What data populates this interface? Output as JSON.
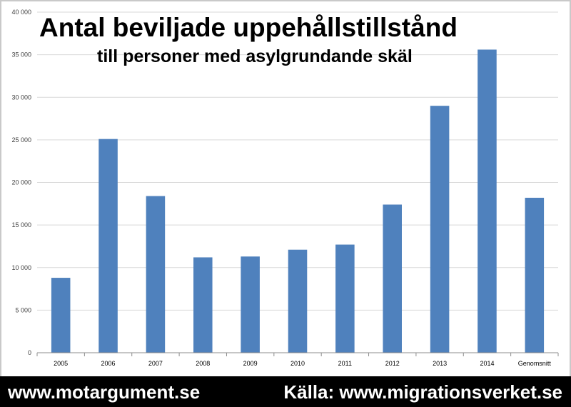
{
  "chart_data": {
    "type": "bar",
    "title": "Antal beviljade uppehållstillstånd",
    "subtitle": "till personer med asylgrundande skäl",
    "categories": [
      "2005",
      "2006",
      "2007",
      "2008",
      "2009",
      "2010",
      "2011",
      "2012",
      "2013",
      "2014",
      "Genomsnitt"
    ],
    "values": [
      8800,
      25100,
      18400,
      11200,
      11300,
      12100,
      12700,
      17400,
      29000,
      35600,
      18200
    ],
    "ylim": [
      0,
      40000
    ],
    "yticks": [
      0,
      5000,
      10000,
      15000,
      20000,
      25000,
      30000,
      35000,
      40000
    ],
    "ytick_labels": [
      "0",
      "5 000",
      "10 000",
      "15 000",
      "20 000",
      "25 000",
      "30 000",
      "35 000",
      "40 000"
    ],
    "grid": true,
    "legend": "none",
    "bar_color": "#4f81bd"
  },
  "footer": {
    "left_text": "www.motargument.se",
    "right_text": "Källa: www.migrationsverket.se"
  }
}
